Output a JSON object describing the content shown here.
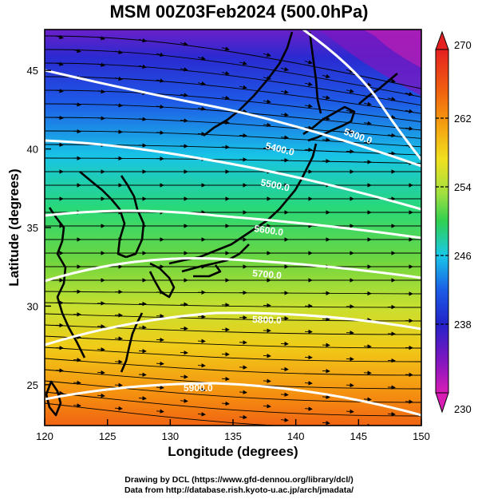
{
  "title": "MSM 00Z03Feb2024 (500.0hPa)",
  "map": {
    "x_axis_label": "Longitude (degrees)",
    "y_axis_label": "Latitude  (degrees)",
    "x_ticks": [
      "120",
      "125",
      "130",
      "135",
      "140",
      "145",
      "150"
    ],
    "y_ticks": [
      "25",
      "30",
      "35",
      "40",
      "45"
    ],
    "lon_range": [
      120,
      150
    ],
    "lat_range": [
      22.4,
      47.6
    ],
    "contour_labels": [
      "5300.0",
      "5400.0",
      "5500.0",
      "5600.0",
      "5700.0",
      "5800.0",
      "5900.0"
    ],
    "colorbar": {
      "ticks": [
        "270",
        "262",
        "254",
        "246",
        "238",
        "230"
      ],
      "range": [
        230,
        270
      ],
      "colors": [
        "#d81db5",
        "#7b16c0",
        "#2323c8",
        "#1a5de6",
        "#19c8e8",
        "#20e0a0",
        "#30d050",
        "#a0e040",
        "#f0e020",
        "#f5a010",
        "#f06010",
        "#e52020"
      ]
    },
    "vectors": "wind streamlines, predominantly westerly"
  },
  "credits": {
    "line1": "Drawing by DCL (https://www.gfd-dennou.org/library/dcl/)",
    "line2": "Data from http://database.rish.kyoto-u.ac.jp/arch/jmadata/"
  }
}
